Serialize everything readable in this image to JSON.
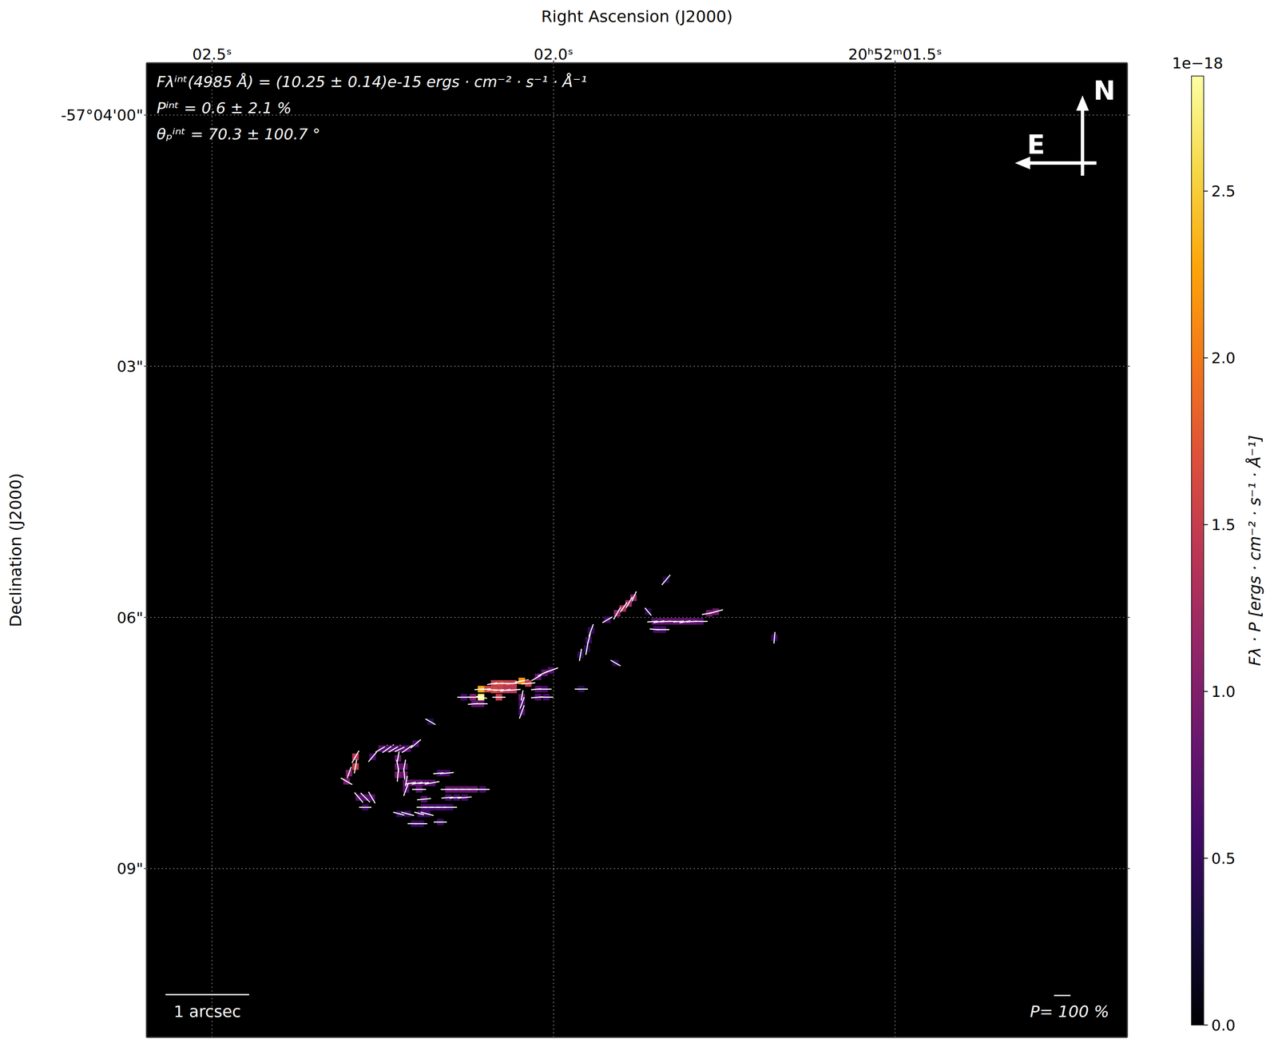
{
  "chart_data": {
    "type": "heatmap",
    "x_label": "Right Ascension (J2000)",
    "y_label": "Declination (J2000)",
    "xlim": [
      2.596,
      1.16
    ],
    "ylim": [
      11.016,
      -0.623
    ],
    "xticks": [
      {
        "value": 2.5,
        "label": "02.5ˢ"
      },
      {
        "value": 2.0,
        "label": "02.0ˢ"
      },
      {
        "value": 1.5,
        "label": "20ʰ52ᵐ01.5ˢ"
      }
    ],
    "yticks": [
      {
        "value": 0,
        "label": "-57°04'00\""
      },
      {
        "value": 3,
        "label": "03\""
      },
      {
        "value": 6,
        "label": "06\""
      },
      {
        "value": 9,
        "label": "09\""
      }
    ],
    "grid": true,
    "annotations": [
      "Fλⁱⁿᵗ(4985 Å) = (10.25 ± 0.14)e-15 ergs · cm⁻² · s⁻¹ · Å⁻¹",
      "Pⁱⁿᵗ = 0.6 ± 2.1 %",
      "θₚⁱⁿᵗ = 70.3 ± 100.7 °"
    ],
    "compass": {
      "north": "N",
      "east": "E"
    },
    "scale_bar": {
      "label": "1 arcsec",
      "length": 1
    },
    "p_scale": {
      "label": "P= 100 %",
      "value": 100
    },
    "colorbar": {
      "label": "Fλ · P [ergs · cm⁻² · s⁻¹ · Å⁻¹]",
      "offset_label": "1e−18",
      "range": [
        0,
        2.845
      ],
      "ticks": [
        {
          "value": 0,
          "label": "0.0"
        },
        0.5,
        {
          "value": 1,
          "label": "1.0"
        },
        {
          "value": 1.5,
          "label": "1.5"
        },
        {
          "value": 2,
          "label": "2.0"
        },
        2.5
      ]
    },
    "cells": [
      {
        "ra": 1.8353,
        "dec": 5.552,
        "value": 0.4,
        "p": 80,
        "angle": 140
      },
      {
        "ra": 1.8831,
        "dec": 5.766,
        "value": 1.1,
        "p": 85,
        "angle": 155
      },
      {
        "ra": 1.8902,
        "dec": 5.834,
        "value": 1.2,
        "p": 90,
        "angle": 150
      },
      {
        "ra": 1.8986,
        "dec": 5.893,
        "value": 1.3,
        "p": 90,
        "angle": 145
      },
      {
        "ra": 1.9069,
        "dec": 5.951,
        "value": 1.1,
        "p": 85,
        "angle": 150
      },
      {
        "ra": 1.9212,
        "dec": 6.029,
        "value": 0.6,
        "p": 70,
        "angle": 120
      },
      {
        "ra": 1.8616,
        "dec": 5.932,
        "value": 0.4,
        "p": 60,
        "angle": 40
      },
      {
        "ra": 1.852,
        "dec": 6.048,
        "value": 0.7,
        "p": 90,
        "angle": 95
      },
      {
        "ra": 1.8425,
        "dec": 6.048,
        "value": 0.8,
        "p": 95,
        "angle": 100
      },
      {
        "ra": 1.8329,
        "dec": 6.048,
        "value": 0.8,
        "p": 90,
        "angle": 95
      },
      {
        "ra": 1.8234,
        "dec": 6.048,
        "value": 0.8,
        "p": 95,
        "angle": 90
      },
      {
        "ra": 1.8138,
        "dec": 6.048,
        "value": 0.8,
        "p": 90,
        "angle": 95
      },
      {
        "ra": 1.8043,
        "dec": 6.048,
        "value": 0.8,
        "p": 95,
        "angle": 100
      },
      {
        "ra": 1.7948,
        "dec": 6.048,
        "value": 0.8,
        "p": 90,
        "angle": 95
      },
      {
        "ra": 1.7852,
        "dec": 6.048,
        "value": 0.7,
        "p": 90,
        "angle": 90
      },
      {
        "ra": 1.7721,
        "dec": 5.951,
        "value": 0.9,
        "p": 90,
        "angle": 100
      },
      {
        "ra": 1.7625,
        "dec": 5.932,
        "value": 0.9,
        "p": 90,
        "angle": 105
      },
      {
        "ra": 1.8496,
        "dec": 6.146,
        "value": 0.6,
        "p": 80,
        "angle": 85
      },
      {
        "ra": 1.8401,
        "dec": 6.146,
        "value": 0.6,
        "p": 80,
        "angle": 90
      },
      {
        "ra": 1.6766,
        "dec": 6.243,
        "value": 0.5,
        "p": 70,
        "angle": 175
      },
      {
        "ra": 1.9451,
        "dec": 6.156,
        "value": 0.5,
        "p": 80,
        "angle": 160
      },
      {
        "ra": 1.9487,
        "dec": 6.273,
        "value": 0.5,
        "p": 85,
        "angle": 165
      },
      {
        "ra": 1.9511,
        "dec": 6.37,
        "value": 0.4,
        "p": 80,
        "angle": 170
      },
      {
        "ra": 1.9606,
        "dec": 6.448,
        "value": 0.4,
        "p": 75,
        "angle": 170
      },
      {
        "ra": 1.9093,
        "dec": 6.545,
        "value": 0.4,
        "p": 70,
        "angle": 60
      },
      {
        "ra": 1.9594,
        "dec": 6.857,
        "value": 0.4,
        "p": 80,
        "angle": 90
      },
      {
        "ra": 2.1062,
        "dec": 6.857,
        "value": 2.3,
        "p": 80,
        "angle": 95
      },
      {
        "ra": 2.1062,
        "dec": 6.954,
        "value": 2.8,
        "p": 75,
        "angle": 80
      },
      {
        "ra": 2.1181,
        "dec": 6.954,
        "value": 1.0,
        "p": 80,
        "angle": 90
      },
      {
        "ra": 2.0967,
        "dec": 6.857,
        "value": 1.6,
        "p": 85,
        "angle": 95
      },
      {
        "ra": 2.0871,
        "dec": 6.789,
        "value": 1.5,
        "p": 85,
        "angle": 100
      },
      {
        "ra": 2.0776,
        "dec": 6.789,
        "value": 1.6,
        "p": 85,
        "angle": 95
      },
      {
        "ra": 2.068,
        "dec": 6.789,
        "value": 1.5,
        "p": 85,
        "angle": 90
      },
      {
        "ra": 2.0585,
        "dec": 6.789,
        "value": 1.5,
        "p": 85,
        "angle": 95
      },
      {
        "ra": 2.0465,
        "dec": 6.76,
        "value": 2.2,
        "p": 85,
        "angle": 100
      },
      {
        "ra": 2.037,
        "dec": 6.789,
        "value": 1.5,
        "p": 85,
        "angle": 95
      },
      {
        "ra": 2.0871,
        "dec": 6.867,
        "value": 1.6,
        "p": 85,
        "angle": 90
      },
      {
        "ra": 2.0776,
        "dec": 6.867,
        "value": 1.5,
        "p": 85,
        "angle": 95
      },
      {
        "ra": 2.068,
        "dec": 6.867,
        "value": 1.4,
        "p": 85,
        "angle": 100
      },
      {
        "ra": 2.0585,
        "dec": 6.867,
        "value": 1.4,
        "p": 85,
        "angle": 95
      },
      {
        "ra": 2.08,
        "dec": 6.954,
        "value": 1.5,
        "p": 80,
        "angle": 90
      },
      {
        "ra": 2.1158,
        "dec": 7.032,
        "value": 0.8,
        "p": 80,
        "angle": 95
      },
      {
        "ra": 2.1062,
        "dec": 7.032,
        "value": 0.8,
        "p": 80,
        "angle": 90
      },
      {
        "ra": 2.0465,
        "dec": 6.954,
        "value": 0.8,
        "p": 85,
        "angle": 170
      },
      {
        "ra": 2.0465,
        "dec": 7.032,
        "value": 0.6,
        "p": 85,
        "angle": 160
      },
      {
        "ra": 2.0465,
        "dec": 7.13,
        "value": 0.6,
        "p": 85,
        "angle": 160
      },
      {
        "ra": 2.0227,
        "dec": 6.711,
        "value": 0.8,
        "p": 90,
        "angle": 120
      },
      {
        "ra": 2.0131,
        "dec": 6.662,
        "value": 0.8,
        "p": 90,
        "angle": 115
      },
      {
        "ra": 2.0036,
        "dec": 6.633,
        "value": 0.7,
        "p": 90,
        "angle": 110
      },
      {
        "ra": 2.0227,
        "dec": 6.857,
        "value": 0.7,
        "p": 85,
        "angle": 95
      },
      {
        "ra": 2.0131,
        "dec": 6.857,
        "value": 0.6,
        "p": 85,
        "angle": 90
      },
      {
        "ra": 2.0227,
        "dec": 6.954,
        "value": 0.7,
        "p": 85,
        "angle": 95
      },
      {
        "ra": 2.0107,
        "dec": 6.954,
        "value": 0.6,
        "p": 85,
        "angle": 90
      },
      {
        "ra": 2.1313,
        "dec": 6.954,
        "value": 0.6,
        "p": 80,
        "angle": 90
      },
      {
        "ra": 2.1802,
        "dec": 7.247,
        "value": 0.4,
        "p": 70,
        "angle": 60
      },
      {
        "ra": 2.29,
        "dec": 7.665,
        "value": 1.4,
        "p": 85,
        "angle": 150
      },
      {
        "ra": 2.29,
        "dec": 7.782,
        "value": 1.5,
        "p": 85,
        "angle": 170
      },
      {
        "ra": 2.2995,
        "dec": 7.86,
        "value": 1.0,
        "p": 80,
        "angle": 160
      },
      {
        "ra": 2.3031,
        "dec": 7.958,
        "value": 0.9,
        "p": 80,
        "angle": 60
      },
      {
        "ra": 2.2852,
        "dec": 8.152,
        "value": 0.7,
        "p": 80,
        "angle": 40
      },
      {
        "ra": 2.2757,
        "dec": 8.152,
        "value": 0.7,
        "p": 80,
        "angle": 45
      },
      {
        "ra": 2.2661,
        "dec": 8.152,
        "value": 0.7,
        "p": 80,
        "angle": 30
      },
      {
        "ra": 2.2757,
        "dec": 8.269,
        "value": 0.5,
        "p": 75,
        "angle": 90
      },
      {
        "ra": 2.2649,
        "dec": 7.665,
        "value": 0.6,
        "p": 80,
        "angle": 140
      },
      {
        "ra": 2.2518,
        "dec": 7.568,
        "value": 0.7,
        "p": 85,
        "angle": 120
      },
      {
        "ra": 2.2422,
        "dec": 7.568,
        "value": 0.7,
        "p": 85,
        "angle": 125
      },
      {
        "ra": 2.2327,
        "dec": 7.568,
        "value": 0.7,
        "p": 85,
        "angle": 120
      },
      {
        "ra": 2.2231,
        "dec": 7.568,
        "value": 0.7,
        "p": 85,
        "angle": 115
      },
      {
        "ra": 2.2136,
        "dec": 7.568,
        "value": 0.7,
        "p": 85,
        "angle": 125
      },
      {
        "ra": 2.2017,
        "dec": 7.51,
        "value": 0.6,
        "p": 80,
        "angle": 130
      },
      {
        "ra": 2.2279,
        "dec": 7.685,
        "value": 0.8,
        "p": 85,
        "angle": 170
      },
      {
        "ra": 2.2279,
        "dec": 7.782,
        "value": 0.8,
        "p": 85,
        "angle": 10
      },
      {
        "ra": 2.2184,
        "dec": 7.782,
        "value": 0.8,
        "p": 85,
        "angle": 170
      },
      {
        "ra": 2.2279,
        "dec": 7.88,
        "value": 0.9,
        "p": 85,
        "angle": 175
      },
      {
        "ra": 2.2184,
        "dec": 7.88,
        "value": 0.8,
        "p": 85,
        "angle": 5
      },
      {
        "ra": 2.216,
        "dec": 7.977,
        "value": 0.8,
        "p": 85,
        "angle": 170
      },
      {
        "ra": 2.216,
        "dec": 8.055,
        "value": 0.7,
        "p": 85,
        "angle": 160
      },
      {
        "ra": 2.2064,
        "dec": 7.977,
        "value": 0.8,
        "p": 90,
        "angle": 100
      },
      {
        "ra": 2.1969,
        "dec": 7.977,
        "value": 0.8,
        "p": 90,
        "angle": 100
      },
      {
        "ra": 2.1873,
        "dec": 7.977,
        "value": 0.7,
        "p": 90,
        "angle": 95
      },
      {
        "ra": 2.1778,
        "dec": 7.977,
        "value": 0.7,
        "p": 90,
        "angle": 100
      },
      {
        "ra": 2.1659,
        "dec": 7.86,
        "value": 0.6,
        "p": 85,
        "angle": 95
      },
      {
        "ra": 2.1563,
        "dec": 7.86,
        "value": 0.6,
        "p": 85,
        "angle": 95
      },
      {
        "ra": 2.1969,
        "dec": 8.055,
        "value": 0.7,
        "p": 85,
        "angle": 90
      },
      {
        "ra": 2.1539,
        "dec": 8.055,
        "value": 0.8,
        "p": 95,
        "angle": 90
      },
      {
        "ra": 2.1444,
        "dec": 8.055,
        "value": 0.8,
        "p": 95,
        "angle": 90
      },
      {
        "ra": 2.1348,
        "dec": 8.055,
        "value": 0.8,
        "p": 95,
        "angle": 90
      },
      {
        "ra": 2.1253,
        "dec": 8.055,
        "value": 0.8,
        "p": 95,
        "angle": 90
      },
      {
        "ra": 2.1158,
        "dec": 8.055,
        "value": 0.8,
        "p": 95,
        "angle": 90
      },
      {
        "ra": 2.1038,
        "dec": 8.055,
        "value": 0.6,
        "p": 85,
        "angle": 90
      },
      {
        "ra": 2.1897,
        "dec": 8.172,
        "value": 0.7,
        "p": 85,
        "angle": 95
      },
      {
        "ra": 2.1539,
        "dec": 8.152,
        "value": 0.6,
        "p": 85,
        "angle": 95
      },
      {
        "ra": 2.142,
        "dec": 8.152,
        "value": 0.6,
        "p": 85,
        "angle": 95
      },
      {
        "ra": 2.1301,
        "dec": 8.152,
        "value": 0.6,
        "p": 85,
        "angle": 95
      },
      {
        "ra": 2.1897,
        "dec": 8.269,
        "value": 0.6,
        "p": 90,
        "angle": 90
      },
      {
        "ra": 2.1802,
        "dec": 8.269,
        "value": 0.6,
        "p": 90,
        "angle": 90
      },
      {
        "ra": 2.1706,
        "dec": 8.269,
        "value": 0.6,
        "p": 90,
        "angle": 90
      },
      {
        "ra": 2.1611,
        "dec": 8.269,
        "value": 0.6,
        "p": 90,
        "angle": 90
      },
      {
        "ra": 2.1516,
        "dec": 8.269,
        "value": 0.5,
        "p": 85,
        "angle": 90
      },
      {
        "ra": 2.2255,
        "dec": 8.347,
        "value": 0.5,
        "p": 80,
        "angle": 75
      },
      {
        "ra": 2.2136,
        "dec": 8.347,
        "value": 0.5,
        "p": 80,
        "angle": 75
      },
      {
        "ra": 2.1945,
        "dec": 8.347,
        "value": 0.6,
        "p": 80,
        "angle": 75
      },
      {
        "ra": 2.185,
        "dec": 8.347,
        "value": 0.5,
        "p": 80,
        "angle": 75
      },
      {
        "ra": 2.2041,
        "dec": 8.464,
        "value": 0.5,
        "p": 80,
        "angle": 90
      },
      {
        "ra": 2.1945,
        "dec": 8.464,
        "value": 0.5,
        "p": 80,
        "angle": 90
      },
      {
        "ra": 2.1659,
        "dec": 8.445,
        "value": 0.5,
        "p": 80,
        "angle": 90
      }
    ]
  }
}
